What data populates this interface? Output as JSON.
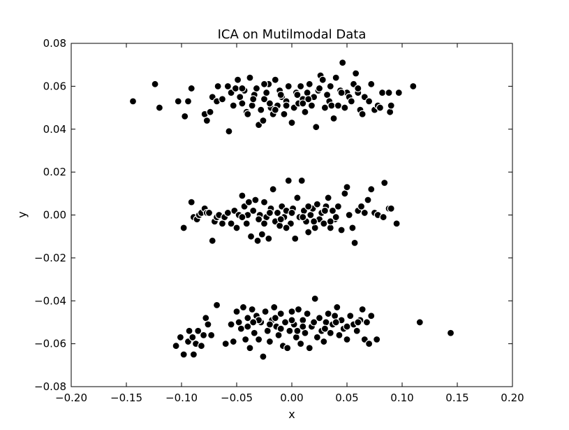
{
  "chart_data": {
    "type": "scatter",
    "title": "ICA on Mutilmodal Data",
    "xlabel": "x",
    "ylabel": "y",
    "xlim": [
      -0.2,
      0.2
    ],
    "ylim": [
      -0.08,
      0.08
    ],
    "xticks": [
      -0.2,
      -0.15,
      -0.1,
      -0.05,
      0.0,
      0.05,
      0.1,
      0.15,
      0.2
    ],
    "xtick_labels": [
      "−0.20",
      "−0.15",
      "−0.10",
      "−0.05",
      "0.00",
      "0.05",
      "0.10",
      "0.15",
      "0.20"
    ],
    "yticks": [
      -0.08,
      -0.06,
      -0.04,
      -0.02,
      0.0,
      0.02,
      0.04,
      0.06,
      0.08
    ],
    "ytick_labels": [
      "−0.08",
      "−0.06",
      "−0.04",
      "−0.02",
      "0.00",
      "0.02",
      "0.04",
      "0.06",
      "0.08"
    ],
    "grid": false,
    "marker_color": "#000000",
    "marker_edge_color": "#ffffff",
    "series": [
      {
        "points": [
          [
            -0.144,
            0.053
          ],
          [
            -0.124,
            0.061
          ],
          [
            -0.12,
            0.05
          ],
          [
            -0.103,
            0.053
          ],
          [
            -0.097,
            0.046
          ],
          [
            -0.094,
            0.053
          ],
          [
            -0.091,
            0.059
          ],
          [
            -0.079,
            0.047
          ],
          [
            -0.077,
            0.044
          ],
          [
            -0.074,
            0.048
          ],
          [
            -0.072,
            0.055
          ],
          [
            -0.068,
            0.053
          ],
          [
            -0.067,
            0.06
          ],
          [
            -0.063,
            0.054
          ],
          [
            -0.058,
            0.06
          ],
          [
            -0.057,
            0.039
          ],
          [
            -0.055,
            0.057
          ],
          [
            -0.053,
            0.051
          ],
          [
            -0.051,
            0.059
          ],
          [
            -0.049,
            0.063
          ],
          [
            -0.047,
            0.055
          ],
          [
            -0.045,
            0.052
          ],
          [
            -0.043,
            0.058
          ],
          [
            -0.041,
            0.048
          ],
          [
            -0.04,
            0.047
          ],
          [
            -0.038,
            0.064
          ],
          [
            -0.036,
            0.051
          ],
          [
            -0.034,
            0.056
          ],
          [
            -0.032,
            0.059
          ],
          [
            -0.03,
            0.042
          ],
          [
            -0.028,
            0.049
          ],
          [
            -0.026,
            0.044
          ],
          [
            -0.025,
            0.054
          ],
          [
            -0.023,
            0.057
          ],
          [
            -0.021,
            0.061
          ],
          [
            -0.019,
            0.05
          ],
          [
            -0.017,
            0.047
          ],
          [
            -0.015,
            0.063
          ],
          [
            -0.013,
            0.051
          ],
          [
            -0.011,
            0.058
          ],
          [
            -0.009,
            0.055
          ],
          [
            -0.007,
            0.047
          ],
          [
            -0.005,
            0.053
          ],
          [
            -0.003,
            0.06
          ],
          [
            0.0,
            0.043
          ],
          [
            0.002,
            0.05
          ],
          [
            0.004,
            0.057
          ],
          [
            0.006,
            0.052
          ],
          [
            0.008,
            0.06
          ],
          [
            0.01,
            0.054
          ],
          [
            0.012,
            0.048
          ],
          [
            0.014,
            0.057
          ],
          [
            0.016,
            0.061
          ],
          [
            0.018,
            0.051
          ],
          [
            0.02,
            0.055
          ],
          [
            0.022,
            0.041
          ],
          [
            0.024,
            0.058
          ],
          [
            0.026,
            0.065
          ],
          [
            0.028,
            0.063
          ],
          [
            0.03,
            0.05
          ],
          [
            0.032,
            0.056
          ],
          [
            0.034,
            0.053
          ],
          [
            0.036,
            0.051
          ],
          [
            0.038,
            0.045
          ],
          [
            0.04,
            0.064
          ],
          [
            0.042,
            0.051
          ],
          [
            0.044,
            0.058
          ],
          [
            0.046,
            0.071
          ],
          [
            0.048,
            0.05
          ],
          [
            0.05,
            0.057
          ],
          [
            0.052,
            0.055
          ],
          [
            0.054,
            0.053
          ],
          [
            0.056,
            0.061
          ],
          [
            0.058,
            0.066
          ],
          [
            0.06,
            0.057
          ],
          [
            0.062,
            0.049
          ],
          [
            0.064,
            0.047
          ],
          [
            0.066,
            0.055
          ],
          [
            0.07,
            0.053
          ],
          [
            0.072,
            0.061
          ],
          [
            0.075,
            0.049
          ],
          [
            0.078,
            0.051
          ],
          [
            0.08,
            0.05
          ],
          [
            0.082,
            0.057
          ],
          [
            0.088,
            0.057
          ],
          [
            0.089,
            0.048
          ],
          [
            0.09,
            0.051
          ],
          [
            0.097,
            0.057
          ],
          [
            0.11,
            0.06
          ],
          [
            -0.045,
            0.059
          ],
          [
            -0.025,
            0.061
          ],
          [
            -0.01,
            0.056
          ],
          [
            0.005,
            0.056
          ],
          [
            0.015,
            0.054
          ],
          [
            0.025,
            0.059
          ],
          [
            0.045,
            0.057
          ],
          [
            -0.035,
            0.054
          ],
          [
            -0.02,
            0.052
          ],
          [
            -0.005,
            0.051
          ],
          [
            0.01,
            0.052
          ],
          [
            0.035,
            0.06
          ],
          [
            0.06,
            0.059
          ],
          [
            -0.015,
            0.049
          ]
        ]
      },
      {
        "points": [
          [
            -0.098,
            -0.006
          ],
          [
            -0.091,
            0.006
          ],
          [
            -0.089,
            -0.001
          ],
          [
            -0.086,
            -0.002
          ],
          [
            -0.084,
            0.0
          ],
          [
            -0.082,
            0.001
          ],
          [
            -0.079,
            0.003
          ],
          [
            -0.077,
            0.001
          ],
          [
            -0.075,
            0.001
          ],
          [
            -0.072,
            -0.012
          ],
          [
            -0.07,
            -0.003
          ],
          [
            -0.068,
            -0.001
          ],
          [
            -0.066,
            0.0
          ],
          [
            -0.063,
            -0.004
          ],
          [
            -0.061,
            -0.001
          ],
          [
            -0.058,
            0.001
          ],
          [
            -0.055,
            -0.004
          ],
          [
            -0.052,
            0.002
          ],
          [
            -0.05,
            -0.006
          ],
          [
            -0.048,
            0.0
          ],
          [
            -0.045,
            0.009
          ],
          [
            -0.043,
            0.004
          ],
          [
            -0.041,
            -0.004
          ],
          [
            -0.039,
            0.006
          ],
          [
            -0.037,
            -0.01
          ],
          [
            -0.035,
            0.002
          ],
          [
            -0.033,
            0.007
          ],
          [
            -0.031,
            -0.012
          ],
          [
            -0.029,
            0.0
          ],
          [
            -0.027,
            -0.009
          ],
          [
            -0.025,
            0.006
          ],
          [
            -0.023,
            -0.001
          ],
          [
            -0.021,
            -0.011
          ],
          [
            -0.019,
            0.003
          ],
          [
            -0.017,
            0.012
          ],
          [
            -0.015,
            -0.003
          ],
          [
            -0.013,
            0.001
          ],
          [
            -0.011,
            -0.005
          ],
          [
            -0.009,
            0.004
          ],
          [
            -0.007,
            -0.001
          ],
          [
            -0.005,
            0.002
          ],
          [
            -0.003,
            0.016
          ],
          [
            -0.001,
            -0.004
          ],
          [
            0.001,
            0.003
          ],
          [
            0.003,
            -0.011
          ],
          [
            0.005,
            0.008
          ],
          [
            0.007,
            -0.001
          ],
          [
            0.009,
            0.016
          ],
          [
            0.011,
            0.002
          ],
          [
            0.013,
            -0.003
          ],
          [
            0.015,
            -0.008
          ],
          [
            0.017,
            0.0
          ],
          [
            0.019,
            0.003
          ],
          [
            0.021,
            -0.006
          ],
          [
            0.023,
            0.005
          ],
          [
            0.025,
            -0.002
          ],
          [
            0.027,
            0.001
          ],
          [
            0.029,
            -0.004
          ],
          [
            0.031,
            0.004
          ],
          [
            0.033,
            0.008
          ],
          [
            0.035,
            -0.006
          ],
          [
            0.037,
            0.002
          ],
          [
            0.039,
            -0.002
          ],
          [
            0.042,
            0.004
          ],
          [
            0.045,
            -0.007
          ],
          [
            0.048,
            0.01
          ],
          [
            0.05,
            0.013
          ],
          [
            0.052,
            0.0
          ],
          [
            0.055,
            -0.006
          ],
          [
            0.057,
            -0.013
          ],
          [
            0.06,
            0.002
          ],
          [
            0.063,
            0.004
          ],
          [
            0.066,
            0.001
          ],
          [
            0.069,
            0.007
          ],
          [
            0.072,
            0.012
          ],
          [
            0.075,
            0.001
          ],
          [
            0.078,
            0.0
          ],
          [
            0.083,
            -0.001
          ],
          [
            0.084,
            0.015
          ],
          [
            0.088,
            0.003
          ],
          [
            0.09,
            0.003
          ],
          [
            0.095,
            -0.004
          ],
          [
            -0.04,
            0.0
          ],
          [
            -0.03,
            -0.002
          ],
          [
            -0.02,
            0.001
          ],
          [
            -0.01,
            -0.002
          ],
          [
            0.0,
            0.001
          ],
          [
            0.01,
            -0.001
          ],
          [
            0.02,
            -0.003
          ],
          [
            0.03,
            0.002
          ],
          [
            0.04,
            -0.001
          ],
          [
            -0.025,
            -0.004
          ],
          [
            -0.005,
            -0.006
          ],
          [
            0.015,
            0.004
          ],
          [
            0.035,
            -0.003
          ],
          [
            -0.045,
            -0.001
          ]
        ]
      },
      {
        "points": [
          [
            -0.105,
            -0.061
          ],
          [
            -0.101,
            -0.057
          ],
          [
            -0.098,
            -0.065
          ],
          [
            -0.094,
            -0.059
          ],
          [
            -0.093,
            -0.054
          ],
          [
            -0.09,
            -0.057
          ],
          [
            -0.089,
            -0.065
          ],
          [
            -0.087,
            -0.06
          ],
          [
            -0.085,
            -0.054
          ],
          [
            -0.082,
            -0.061
          ],
          [
            -0.08,
            -0.056
          ],
          [
            -0.078,
            -0.048
          ],
          [
            -0.076,
            -0.051
          ],
          [
            -0.073,
            -0.056
          ],
          [
            -0.068,
            -0.042
          ],
          [
            -0.06,
            -0.06
          ],
          [
            -0.055,
            -0.051
          ],
          [
            -0.053,
            -0.059
          ],
          [
            -0.05,
            -0.045
          ],
          [
            -0.048,
            -0.05
          ],
          [
            -0.046,
            -0.053
          ],
          [
            -0.044,
            -0.043
          ],
          [
            -0.042,
            -0.058
          ],
          [
            -0.04,
            -0.048
          ],
          [
            -0.038,
            -0.062
          ],
          [
            -0.036,
            -0.044
          ],
          [
            -0.034,
            -0.055
          ],
          [
            -0.032,
            -0.047
          ],
          [
            -0.03,
            -0.058
          ],
          [
            -0.028,
            -0.05
          ],
          [
            -0.026,
            -0.066
          ],
          [
            -0.024,
            -0.045
          ],
          [
            -0.022,
            -0.054
          ],
          [
            -0.02,
            -0.059
          ],
          [
            -0.018,
            -0.049
          ],
          [
            -0.016,
            -0.043
          ],
          [
            -0.014,
            -0.052
          ],
          [
            -0.012,
            -0.056
          ],
          [
            -0.01,
            -0.046
          ],
          [
            -0.008,
            -0.061
          ],
          [
            -0.006,
            -0.05
          ],
          [
            -0.004,
            -0.062
          ],
          [
            -0.002,
            -0.054
          ],
          [
            0.0,
            -0.045
          ],
          [
            0.002,
            -0.051
          ],
          [
            0.004,
            -0.057
          ],
          [
            0.006,
            -0.044
          ],
          [
            0.008,
            -0.06
          ],
          [
            0.01,
            -0.049
          ],
          [
            0.012,
            -0.055
          ],
          [
            0.014,
            -0.046
          ],
          [
            0.016,
            -0.062
          ],
          [
            0.018,
            -0.052
          ],
          [
            0.021,
            -0.039
          ],
          [
            0.023,
            -0.057
          ],
          [
            0.025,
            -0.048
          ],
          [
            0.027,
            -0.054
          ],
          [
            0.029,
            -0.059
          ],
          [
            0.031,
            -0.05
          ],
          [
            0.033,
            -0.046
          ],
          [
            0.035,
            -0.055
          ],
          [
            0.037,
            -0.051
          ],
          [
            0.039,
            -0.047
          ],
          [
            0.041,
            -0.043
          ],
          [
            0.043,
            -0.056
          ],
          [
            0.045,
            -0.049
          ],
          [
            0.047,
            -0.053
          ],
          [
            0.05,
            -0.058
          ],
          [
            0.053,
            -0.047
          ],
          [
            0.056,
            -0.051
          ],
          [
            0.059,
            -0.054
          ],
          [
            0.062,
            -0.049
          ],
          [
            0.064,
            -0.044
          ],
          [
            0.066,
            -0.058
          ],
          [
            0.068,
            -0.05
          ],
          [
            0.07,
            -0.06
          ],
          [
            0.072,
            -0.047
          ],
          [
            0.077,
            -0.058
          ],
          [
            0.116,
            -0.05
          ],
          [
            0.144,
            -0.055
          ],
          [
            -0.04,
            -0.052
          ],
          [
            -0.03,
            -0.049
          ],
          [
            -0.02,
            -0.051
          ],
          [
            -0.01,
            -0.053
          ],
          [
            0.0,
            -0.049
          ],
          [
            0.01,
            -0.052
          ],
          [
            0.02,
            -0.05
          ],
          [
            0.03,
            -0.053
          ],
          [
            0.04,
            -0.05
          ],
          [
            0.05,
            -0.052
          ],
          [
            0.06,
            -0.05
          ],
          [
            -0.035,
            -0.05
          ],
          [
            -0.015,
            -0.048
          ],
          [
            0.005,
            -0.054
          ]
        ]
      }
    ]
  }
}
